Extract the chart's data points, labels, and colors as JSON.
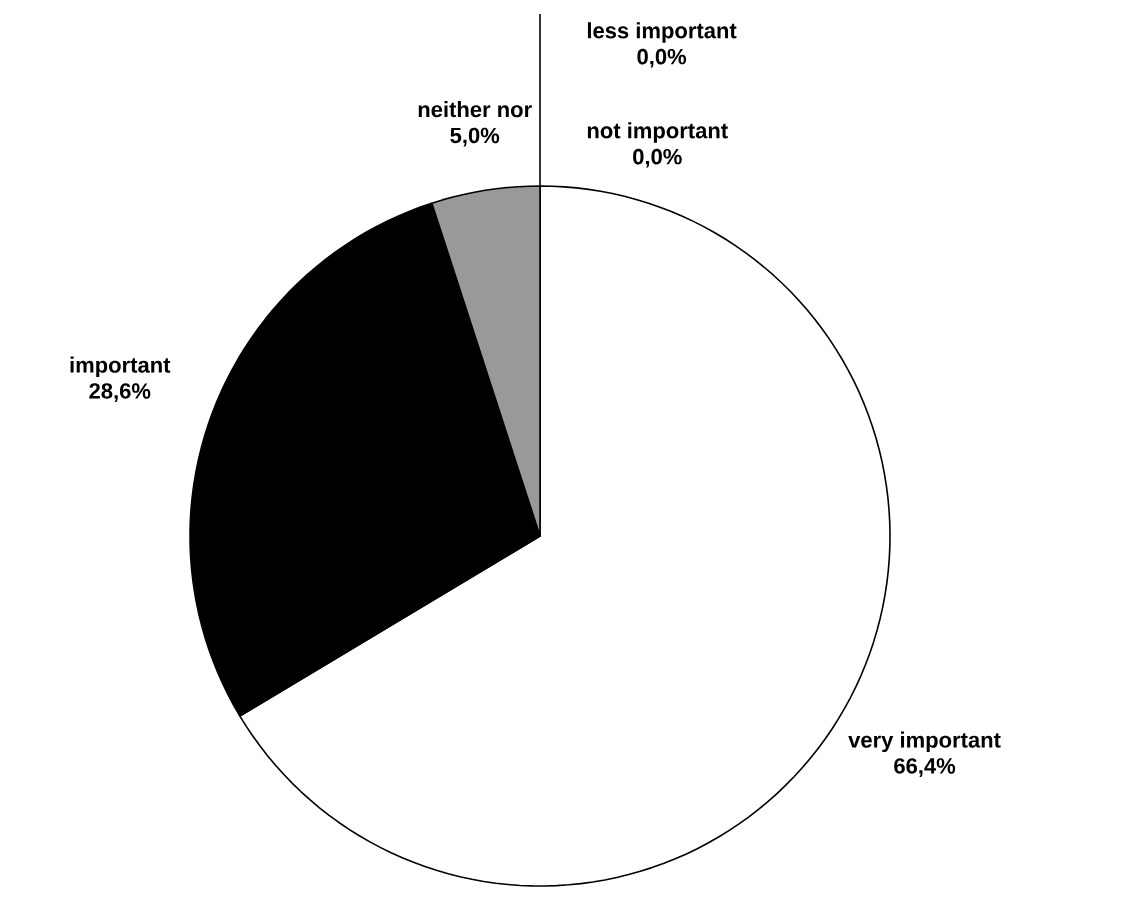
{
  "chart_data": {
    "type": "pie",
    "categories": [
      "very important",
      "important",
      "neither nor",
      "less important",
      "not important"
    ],
    "values": [
      66.4,
      28.6,
      5.0,
      0.0,
      0.0
    ],
    "value_labels": [
      "66,4%",
      "28,6%",
      "5,0%",
      "0,0%",
      "0,0%"
    ],
    "colors": [
      "#ffffff",
      "#000000",
      "#999999",
      "#ffffff",
      "#ffffff"
    ]
  }
}
